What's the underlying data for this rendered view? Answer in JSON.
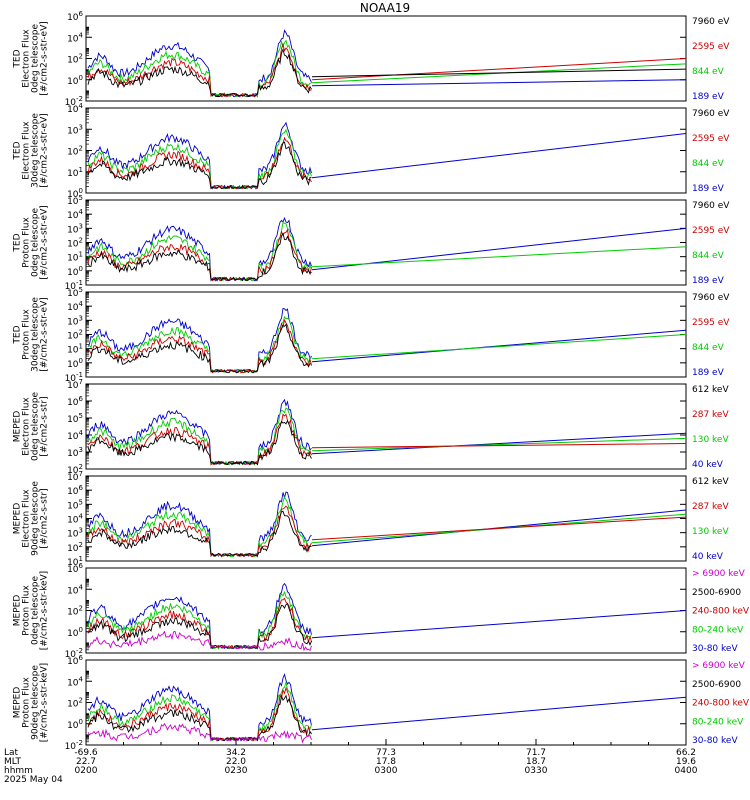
{
  "chart_data": {
    "type": "line",
    "title": "NOAA19",
    "panels": [
      {
        "ylabel": [
          "TED",
          "Electron Flux",
          "0deg telescope",
          "[#/cm2-s-str-eV]"
        ],
        "yexp": [
          -2,
          0,
          2,
          4,
          6
        ],
        "legend": [
          {
            "text": "7960 eV",
            "color": "#000000"
          },
          {
            "text": "2595 eV",
            "color": "#cc0000"
          },
          {
            "text": "844 eV",
            "color": "#00cc00"
          },
          {
            "text": "189 eV",
            "color": "#0000cc"
          }
        ],
        "ext_end": {
          "#000000": 1.0,
          "#cc0000": 2.0,
          "#00cc00": 1.5,
          "#0000cc": 0.0
        }
      },
      {
        "ylabel": [
          "TED",
          "Electron Flux",
          "30deg telescope",
          "[#/cm2-s-str-eV]"
        ],
        "yexp": [
          0,
          1,
          2,
          3,
          4
        ],
        "legend": [
          {
            "text": "7960 eV",
            "color": "#000000"
          },
          {
            "text": "2595 eV",
            "color": "#cc0000"
          },
          {
            "text": "844 eV",
            "color": "#00cc00"
          },
          {
            "text": "189 eV",
            "color": "#0000cc"
          }
        ],
        "ext_end": {
          "#0000cc": 2.8
        }
      },
      {
        "ylabel": [
          "TED",
          "Proton Flux",
          "0deg telescope",
          "[#/cm2-s-str-eV]"
        ],
        "yexp": [
          -1,
          0,
          1,
          2,
          3,
          4,
          5
        ],
        "legend": [
          {
            "text": "7960 eV",
            "color": "#000000"
          },
          {
            "text": "2595 eV",
            "color": "#cc0000"
          },
          {
            "text": "844 eV",
            "color": "#00cc00"
          },
          {
            "text": "189 eV",
            "color": "#0000cc"
          }
        ],
        "ext_end": {
          "#00cc00": 1.7,
          "#0000cc": 3.0
        }
      },
      {
        "ylabel": [
          "TED",
          "Proton Flux",
          "30deg telescope",
          "[#/cm2-s-str-eV]"
        ],
        "yexp": [
          -1,
          0,
          1,
          2,
          3,
          4,
          5
        ],
        "legend": [
          {
            "text": "7960 eV",
            "color": "#000000"
          },
          {
            "text": "2595 eV",
            "color": "#cc0000"
          },
          {
            "text": "844 eV",
            "color": "#00cc00"
          },
          {
            "text": "189 eV",
            "color": "#0000cc"
          }
        ],
        "ext_end": {
          "#00cc00": 2.0,
          "#0000cc": 2.3
        }
      },
      {
        "ylabel": [
          "MEPED",
          "Electron Flux",
          "0deg telescope",
          "[#/cm2-s-str]"
        ],
        "yexp": [
          2,
          3,
          4,
          5,
          6,
          7
        ],
        "legend": [
          {
            "text": "612 keV",
            "color": "#000000"
          },
          {
            "text": "287 keV",
            "color": "#cc0000"
          },
          {
            "text": "130 keV",
            "color": "#00cc00"
          },
          {
            "text": "40 keV",
            "color": "#0000cc"
          }
        ],
        "ext_end": {
          "#cc0000": 3.5,
          "#00cc00": 3.8,
          "#0000cc": 4.1
        }
      },
      {
        "ylabel": [
          "MEPED",
          "Electron Flux",
          "90deg telescope",
          "[#/cm2-s-str]"
        ],
        "yexp": [
          1,
          2,
          3,
          4,
          5,
          6,
          7
        ],
        "legend": [
          {
            "text": "612 keV",
            "color": "#000000"
          },
          {
            "text": "287 keV",
            "color": "#cc0000"
          },
          {
            "text": "130 keV",
            "color": "#00cc00"
          },
          {
            "text": "40 keV",
            "color": "#0000cc"
          }
        ],
        "ext_end": {
          "#cc0000": 4.1,
          "#00cc00": 4.3,
          "#0000cc": 4.6
        }
      },
      {
        "ylabel": [
          "MEPED",
          "Proton Flux",
          "0deg telescope",
          "[#/cm2-s-str-keV]"
        ],
        "yexp": [
          -2,
          0,
          2,
          4,
          6
        ],
        "legend": [
          {
            "text": "> 6900 keV",
            "color": "#cc00cc"
          },
          {
            "text": "2500-6900",
            "color": "#000000"
          },
          {
            "text": "240-800 keV",
            "color": "#cc0000"
          },
          {
            "text": "80-240 keV",
            "color": "#00cc00"
          },
          {
            "text": "30-80 keV",
            "color": "#0000cc"
          }
        ],
        "ext_end": {
          "#0000cc": 2.0
        }
      },
      {
        "ylabel": [
          "MEPED",
          "Proton Flux",
          "90deg telescope",
          "[#/cm2-s-str-keV]"
        ],
        "yexp": [
          -2,
          0,
          2,
          4,
          6
        ],
        "legend": [
          {
            "text": "> 6900 keV",
            "color": "#cc00cc"
          },
          {
            "text": "2500-6900",
            "color": "#000000"
          },
          {
            "text": "240-800 keV",
            "color": "#cc0000"
          },
          {
            "text": "80-240 keV",
            "color": "#00cc00"
          },
          {
            "text": "30-80 keV",
            "color": "#0000cc"
          }
        ],
        "ext_end": {
          "#0000cc": 2.5
        }
      }
    ],
    "xaxis": {
      "row_labels": [
        "Lat",
        "MLT",
        "hhmm",
        "2025 May 04"
      ],
      "ticks": [
        {
          "time": "0200",
          "lat": "-69.6",
          "mlt": "22.7"
        },
        {
          "time": "0230",
          "lat": "34.2",
          "mlt": "22.0"
        },
        {
          "time": "0300",
          "lat": "77.3",
          "mlt": "17.8"
        },
        {
          "time": "0330",
          "lat": "71.7",
          "mlt": "18.7"
        },
        {
          "time": "0400",
          "lat": "66.2",
          "mlt": "19.6"
        }
      ]
    }
  }
}
